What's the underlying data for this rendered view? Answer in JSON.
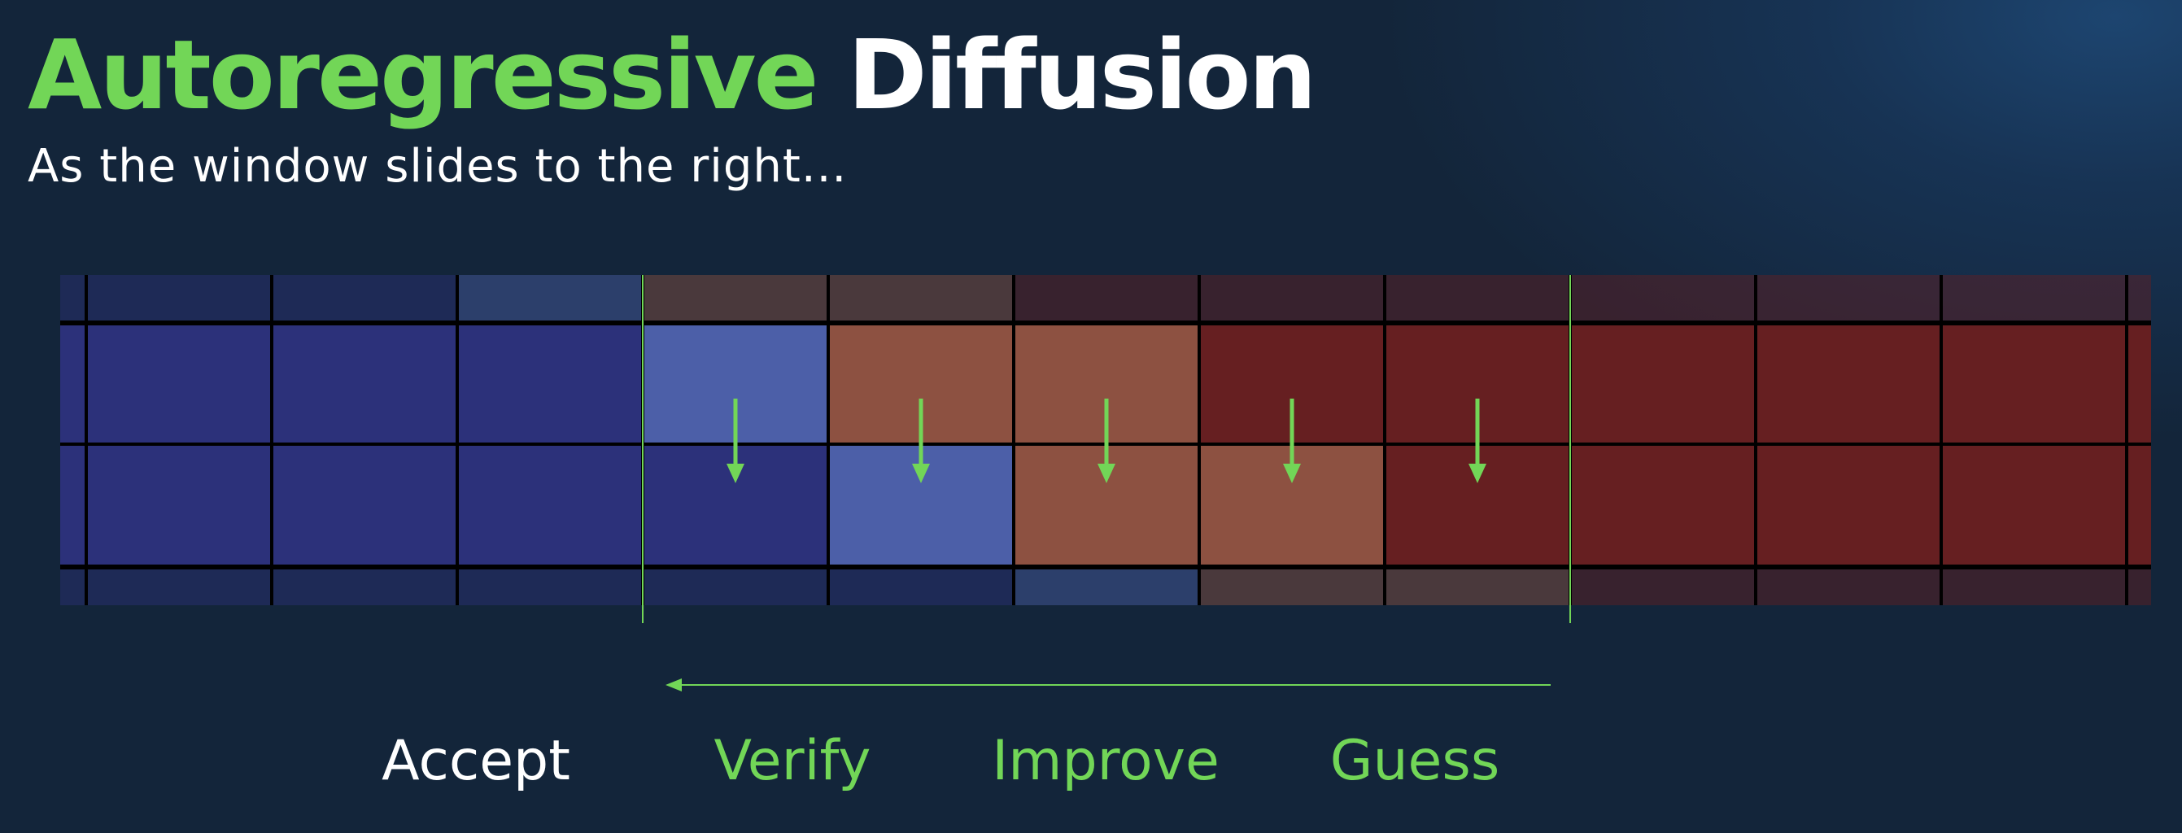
{
  "header": {
    "title_part1": "Autoregressive",
    "title_part2": "Diffusion",
    "subtitle": "As the window slides to the right..."
  },
  "colors": {
    "accent_green": "#72d657",
    "accepted_blue": "#2c317a",
    "light_blue": "#4c5fa8",
    "orange": "#8d5141",
    "dark_red": "#661f21",
    "grid_line": "#000000"
  },
  "diagram": {
    "window_columns": [
      3,
      8
    ],
    "arrow_columns": [
      3,
      4,
      5,
      6,
      7
    ],
    "rows": [
      [
        "accepted_blue",
        "accepted_blue",
        "light_blue",
        "orange",
        "orange",
        "dark_red",
        "dark_red",
        "dark_red",
        "dark_red",
        "dark_red",
        "dark_red"
      ],
      [
        "accepted_blue",
        "accepted_blue",
        "accepted_blue",
        "light_blue",
        "orange",
        "orange",
        "dark_red",
        "dark_red",
        "dark_red",
        "dark_red",
        "dark_red"
      ],
      [
        "accepted_blue",
        "accepted_blue",
        "accepted_blue",
        "accepted_blue",
        "light_blue",
        "orange",
        "orange",
        "dark_red",
        "dark_red",
        "dark_red",
        "dark_red"
      ],
      [
        "accepted_blue",
        "accepted_blue",
        "accepted_blue",
        "accepted_blue",
        "accepted_blue",
        "light_blue",
        "orange",
        "orange",
        "dark_red",
        "dark_red",
        "dark_red"
      ]
    ]
  },
  "labels": {
    "accept": "Accept",
    "verify": "Verify",
    "improve": "Improve",
    "guess": "Guess"
  }
}
